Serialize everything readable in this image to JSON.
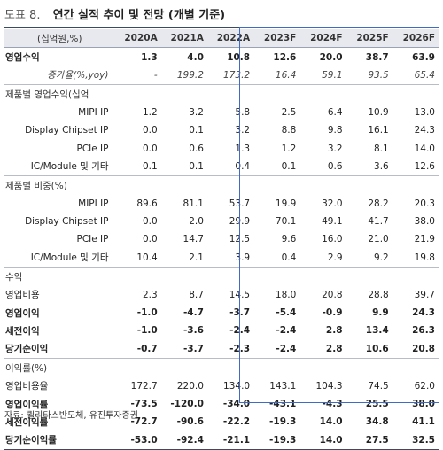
{
  "figure_label": "도표 8.",
  "title": "연간 실적 추이 및 전망 (개별 기준)",
  "unit": "(십억원,%)",
  "columns": [
    "2020A",
    "2021A",
    "2022A",
    "2023F",
    "2024F",
    "2025F",
    "2026F"
  ],
  "rows": [
    {
      "label": "영업수익",
      "values": [
        "1.3",
        "4.0",
        "10.8",
        "12.6",
        "20.0",
        "38.7",
        "63.9"
      ]
    },
    {
      "label": "증가율(%,yoy)",
      "values": [
        "-",
        "199.2",
        "173.2",
        "16.4",
        "59.1",
        "93.5",
        "65.4"
      ]
    },
    {
      "label": "제품별 영업수익(십억",
      "values": [
        "",
        "",
        "",
        "",
        "",
        "",
        ""
      ]
    },
    {
      "label": "MIPI IP",
      "values": [
        "1.2",
        "3.2",
        "5.8",
        "2.5",
        "6.4",
        "10.9",
        "13.0"
      ]
    },
    {
      "label": "Display Chipset IP",
      "values": [
        "0.0",
        "0.1",
        "3.2",
        "8.8",
        "9.8",
        "16.1",
        "24.3"
      ]
    },
    {
      "label": "PCIe IP",
      "values": [
        "0.0",
        "0.6",
        "1.3",
        "1.2",
        "3.2",
        "8.1",
        "14.0"
      ]
    },
    {
      "label": "IC/Module 및 기타",
      "values": [
        "0.1",
        "0.1",
        "0.4",
        "0.1",
        "0.6",
        "3.6",
        "12.6"
      ]
    },
    {
      "label": "제품별 비중(%)",
      "values": [
        "",
        "",
        "",
        "",
        "",
        "",
        ""
      ]
    },
    {
      "label": "MIPI IP",
      "values": [
        "89.6",
        "81.1",
        "53.7",
        "19.9",
        "32.0",
        "28.2",
        "20.3"
      ]
    },
    {
      "label": "Display Chipset IP",
      "values": [
        "0.0",
        "2.0",
        "29.9",
        "70.1",
        "49.1",
        "41.7",
        "38.0"
      ]
    },
    {
      "label": "PCIe IP",
      "values": [
        "0.0",
        "14.7",
        "12.5",
        "9.6",
        "16.0",
        "21.0",
        "21.9"
      ]
    },
    {
      "label": "IC/Module 및 기타",
      "values": [
        "10.4",
        "2.1",
        "3.9",
        "0.4",
        "2.9",
        "9.2",
        "19.8"
      ]
    },
    {
      "label": "수익",
      "values": [
        "",
        "",
        "",
        "",
        "",
        "",
        ""
      ]
    },
    {
      "label": "영업비용",
      "values": [
        "2.3",
        "8.7",
        "14.5",
        "18.0",
        "20.8",
        "28.8",
        "39.7"
      ]
    },
    {
      "label": "영업이익",
      "values": [
        "-1.0",
        "-4.7",
        "-3.7",
        "-5.4",
        "-0.9",
        "9.9",
        "24.3"
      ]
    },
    {
      "label": "세전이익",
      "values": [
        "-1.0",
        "-3.6",
        "-2.4",
        "-2.4",
        "2.8",
        "13.4",
        "26.3"
      ]
    },
    {
      "label": "당기순이익",
      "values": [
        "-0.7",
        "-3.7",
        "-2.3",
        "-2.4",
        "2.8",
        "10.6",
        "20.8"
      ]
    },
    {
      "label": "이익률(%)",
      "values": [
        "",
        "",
        "",
        "",
        "",
        "",
        ""
      ]
    },
    {
      "label": "영업비용율",
      "values": [
        "172.7",
        "220.0",
        "134.0",
        "143.1",
        "104.3",
        "74.5",
        "62.0"
      ]
    },
    {
      "label": "영업이익률",
      "values": [
        "-73.5",
        "-120.0",
        "-34.0",
        "-43.1",
        "-4.3",
        "25.5",
        "38.0"
      ]
    },
    {
      "label": "세전이익률",
      "values": [
        "-72.7",
        "-90.6",
        "-22.2",
        "-19.3",
        "14.0",
        "34.8",
        "41.1"
      ]
    },
    {
      "label": "당기순이익률",
      "values": [
        "-53.0",
        "-92.4",
        "-21.1",
        "-19.3",
        "14.0",
        "27.5",
        "32.5"
      ]
    }
  ],
  "source": "자료: 퀄리타스반도체, 유진투자증권",
  "colors": {
    "forecast_box": "#3f6bc4",
    "header_bg": "#e8e9ee",
    "rule": "#3b4a5e"
  }
}
